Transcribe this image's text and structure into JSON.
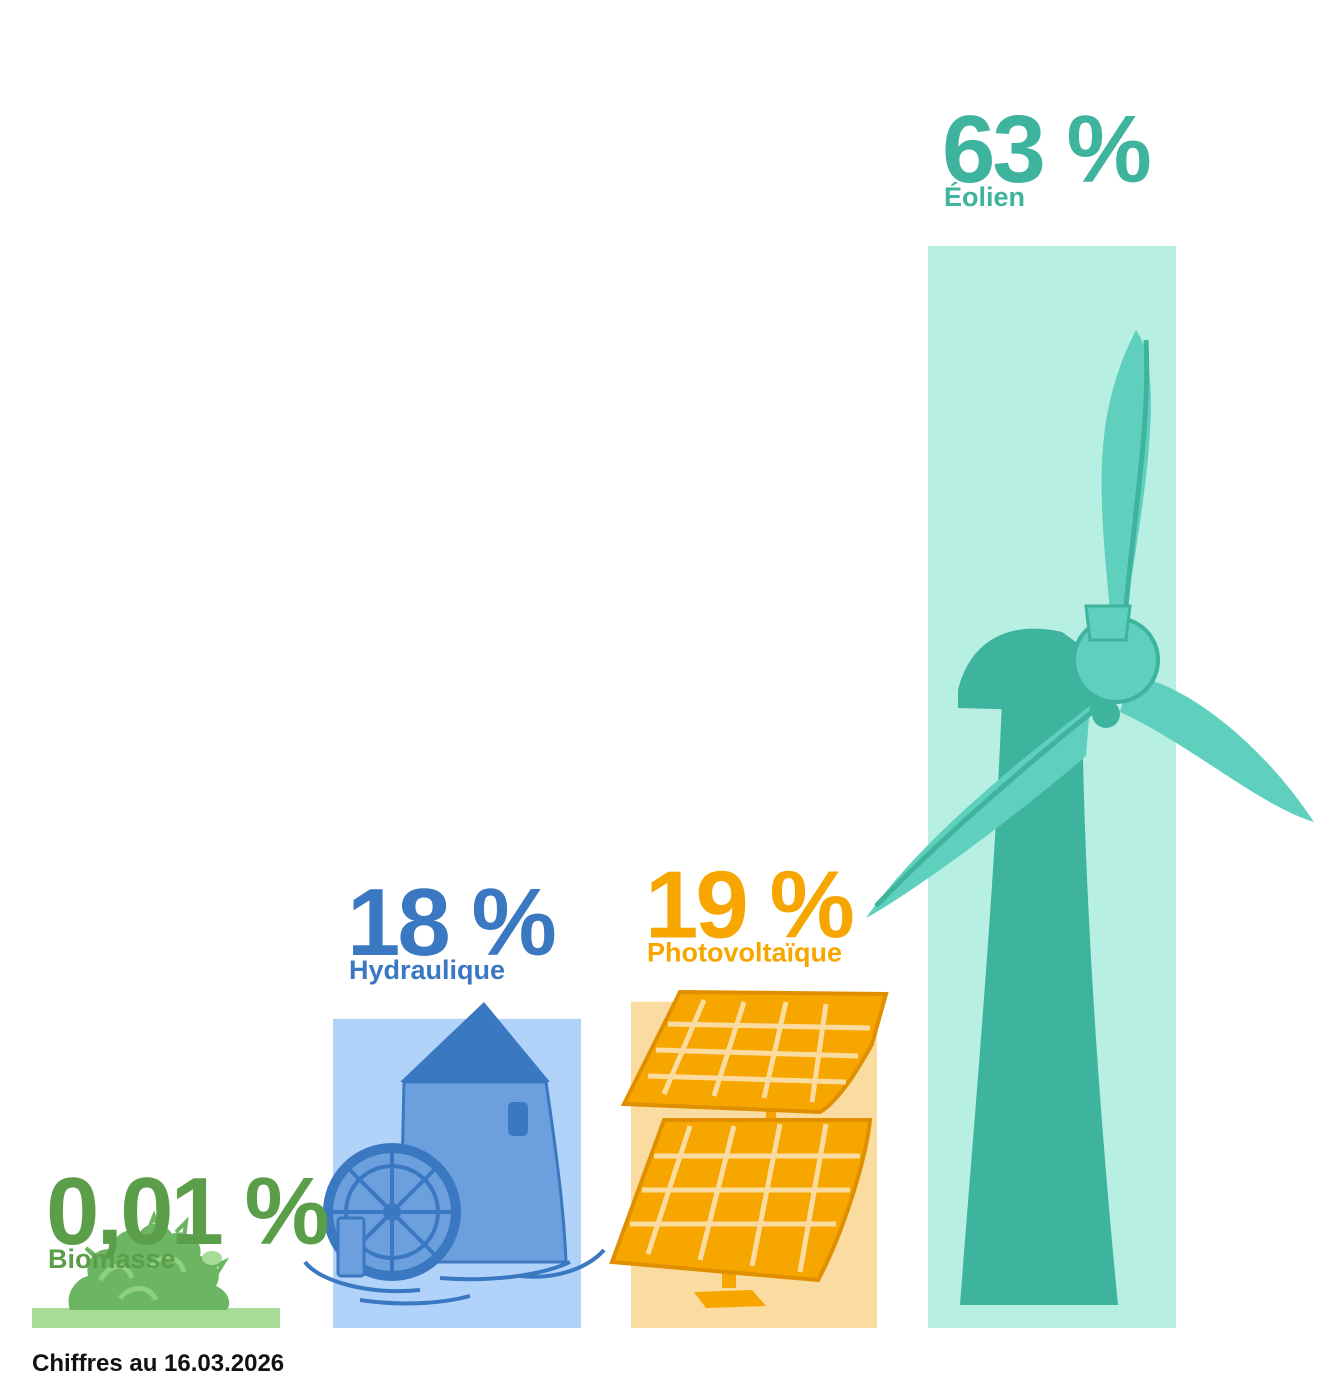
{
  "chart_data": {
    "type": "bar",
    "categories": [
      "Biomasse",
      "Hydraulique",
      "Photovoltaïque",
      "Éolien"
    ],
    "values": [
      0.01,
      18,
      19,
      63
    ],
    "value_labels": [
      "0,01 %",
      "18 %",
      "19 %",
      "63 %"
    ],
    "unit": "%",
    "title": "",
    "xlabel": "",
    "ylabel": "",
    "ylim": [
      0,
      63
    ],
    "grid": false,
    "legend": "none",
    "bar_colors": [
      "#a6dc98",
      "#b1d3fa",
      "#fbdca0",
      "#b7efe3"
    ],
    "label_colors": [
      "#5b9e4a",
      "#3b78c2",
      "#f7a600",
      "#3eb39e"
    ],
    "icons": [
      "grass-bush-icon",
      "watermill-icon",
      "solar-panel-icon",
      "wind-turbine-icon"
    ]
  },
  "footnote": "Chiffres au 16.03.2026"
}
